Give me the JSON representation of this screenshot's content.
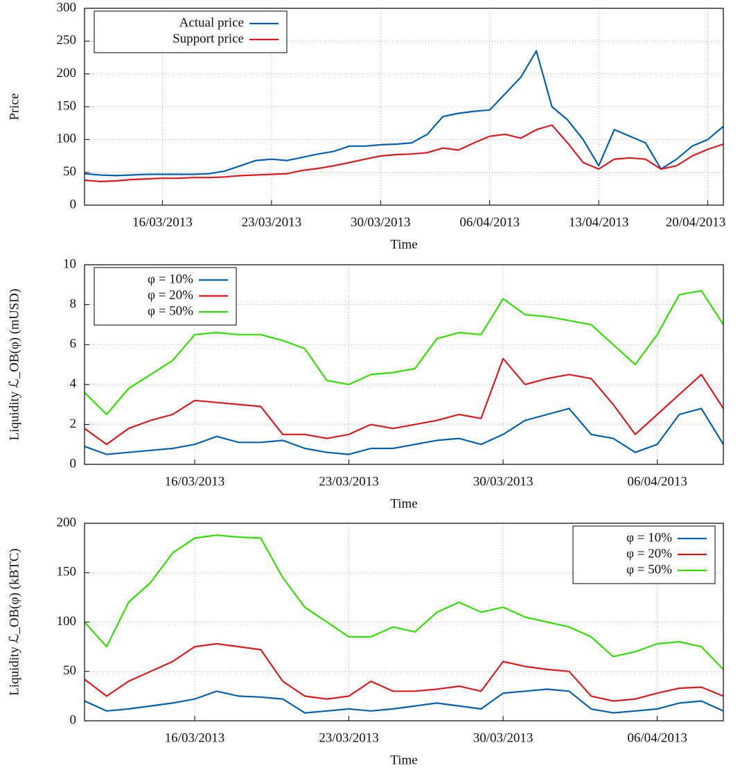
{
  "chart_data": [
    {
      "type": "line",
      "ylabel": "Price",
      "xlabel": "Time",
      "legend": "upper left",
      "grid": true,
      "x": [
        "2013-03-11",
        "2013-03-12",
        "2013-03-13",
        "2013-03-14",
        "2013-03-15",
        "2013-03-16",
        "2013-03-17",
        "2013-03-18",
        "2013-03-19",
        "2013-03-20",
        "2013-03-21",
        "2013-03-22",
        "2013-03-23",
        "2013-03-24",
        "2013-03-25",
        "2013-03-26",
        "2013-03-27",
        "2013-03-28",
        "2013-03-29",
        "2013-03-30",
        "2013-03-31",
        "2013-04-01",
        "2013-04-02",
        "2013-04-03",
        "2013-04-04",
        "2013-04-05",
        "2013-04-06",
        "2013-04-07",
        "2013-04-08",
        "2013-04-09",
        "2013-04-10",
        "2013-04-11",
        "2013-04-12",
        "2013-04-13",
        "2013-04-14",
        "2013-04-15",
        "2013-04-16",
        "2013-04-17",
        "2013-04-18",
        "2013-04-19",
        "2013-04-20",
        "2013-04-21"
      ],
      "xlim": [
        "2013-03-11",
        "2013-04-21"
      ],
      "xticks": [
        {
          "value": "2013-03-16",
          "label": "16/03/2013"
        },
        {
          "value": "2013-03-23",
          "label": "23/03/2013"
        },
        {
          "value": "2013-03-30",
          "label": "30/03/2013"
        },
        {
          "value": "2013-04-06",
          "label": "06/04/2013"
        },
        {
          "value": "2013-04-13",
          "label": "13/04/2013"
        },
        {
          "value": "2013-04-20",
          "label": "20/04/2013"
        }
      ],
      "ylim": [
        0,
        300
      ],
      "yticks": [
        0,
        50,
        100,
        150,
        200,
        250,
        300
      ],
      "series": [
        {
          "name": "Actual price",
          "color": "#0060ad",
          "values": [
            48,
            46,
            45,
            46,
            47,
            47,
            47,
            47,
            48,
            52,
            60,
            68,
            70,
            68,
            73,
            78,
            82,
            90,
            90,
            92,
            93,
            95,
            108,
            135,
            140,
            143,
            145,
            170,
            195,
            235,
            150,
            130,
            100,
            60,
            115,
            105,
            95,
            55,
            70,
            90,
            100,
            120
          ]
        },
        {
          "name": "Support price",
          "color": "#dd181f",
          "values": [
            38,
            36,
            37,
            39,
            40,
            41,
            41,
            42,
            42,
            43,
            45,
            46,
            47,
            48,
            53,
            56,
            60,
            65,
            70,
            75,
            77,
            78,
            80,
            87,
            84,
            95,
            105,
            108,
            102,
            115,
            122,
            95,
            65,
            55,
            70,
            72,
            70,
            55,
            60,
            75,
            85,
            93
          ]
        }
      ]
    },
    {
      "type": "line",
      "ylabel": "Liquidity ℒ_OB(φ) (mUSD)",
      "xlabel": "Time",
      "legend": "upper left",
      "grid": true,
      "x": [
        "2013-03-11",
        "2013-03-12",
        "2013-03-13",
        "2013-03-14",
        "2013-03-15",
        "2013-03-16",
        "2013-03-17",
        "2013-03-18",
        "2013-03-19",
        "2013-03-20",
        "2013-03-21",
        "2013-03-22",
        "2013-03-23",
        "2013-03-24",
        "2013-03-25",
        "2013-03-26",
        "2013-03-27",
        "2013-03-28",
        "2013-03-29",
        "2013-03-30",
        "2013-03-31",
        "2013-04-01",
        "2013-04-02",
        "2013-04-03",
        "2013-04-04",
        "2013-04-05",
        "2013-04-06",
        "2013-04-07",
        "2013-04-08",
        "2013-04-09"
      ],
      "xlim": [
        "2013-03-11",
        "2013-04-09"
      ],
      "xticks": [
        {
          "value": "2013-03-16",
          "label": "16/03/2013"
        },
        {
          "value": "2013-03-23",
          "label": "23/03/2013"
        },
        {
          "value": "2013-03-30",
          "label": "30/03/2013"
        },
        {
          "value": "2013-04-06",
          "label": "06/04/2013"
        }
      ],
      "ylim": [
        0,
        10
      ],
      "yticks": [
        0,
        2,
        4,
        6,
        8,
        10
      ],
      "series": [
        {
          "name": "φ = 10%",
          "color": "#0060ad",
          "values": [
            0.9,
            0.5,
            0.6,
            0.7,
            0.8,
            1.0,
            1.4,
            1.1,
            1.1,
            1.2,
            0.8,
            0.6,
            0.5,
            0.8,
            0.8,
            1.0,
            1.2,
            1.3,
            1.0,
            1.5,
            2.2,
            2.5,
            2.8,
            1.5,
            1.3,
            0.6,
            1.0,
            2.5,
            2.8,
            1.0
          ]
        },
        {
          "name": "φ = 20%",
          "color": "#dd181f",
          "values": [
            1.8,
            1.0,
            1.8,
            2.2,
            2.5,
            3.2,
            3.1,
            3.0,
            2.9,
            1.5,
            1.5,
            1.3,
            1.5,
            2.0,
            1.8,
            2.0,
            2.2,
            2.5,
            2.3,
            5.3,
            4.0,
            4.3,
            4.5,
            4.3,
            3.0,
            1.5,
            2.5,
            3.5,
            4.5,
            2.8
          ]
        },
        {
          "name": "φ = 50%",
          "color": "#33dd00",
          "values": [
            3.6,
            2.5,
            3.8,
            4.5,
            5.2,
            6.5,
            6.6,
            6.5,
            6.5,
            6.2,
            5.8,
            4.2,
            4.0,
            4.5,
            4.6,
            4.8,
            6.3,
            6.6,
            6.5,
            8.3,
            7.5,
            7.4,
            7.2,
            7.0,
            6.0,
            5.0,
            6.5,
            8.5,
            8.7,
            7.0
          ]
        }
      ]
    },
    {
      "type": "line",
      "ylabel": "Liquidity ℒ_OB(φ) (kBTC)",
      "xlabel": "Time",
      "legend": "upper right",
      "grid": true,
      "x": [
        "2013-03-11",
        "2013-03-12",
        "2013-03-13",
        "2013-03-14",
        "2013-03-15",
        "2013-03-16",
        "2013-03-17",
        "2013-03-18",
        "2013-03-19",
        "2013-03-20",
        "2013-03-21",
        "2013-03-22",
        "2013-03-23",
        "2013-03-24",
        "2013-03-25",
        "2013-03-26",
        "2013-03-27",
        "2013-03-28",
        "2013-03-29",
        "2013-03-30",
        "2013-03-31",
        "2013-04-01",
        "2013-04-02",
        "2013-04-03",
        "2013-04-04",
        "2013-04-05",
        "2013-04-06",
        "2013-04-07",
        "2013-04-08",
        "2013-04-09"
      ],
      "xlim": [
        "2013-03-11",
        "2013-04-09"
      ],
      "xticks": [
        {
          "value": "2013-03-16",
          "label": "16/03/2013"
        },
        {
          "value": "2013-03-23",
          "label": "23/03/2013"
        },
        {
          "value": "2013-03-30",
          "label": "30/03/2013"
        },
        {
          "value": "2013-04-06",
          "label": "06/04/2013"
        }
      ],
      "ylim": [
        0,
        200
      ],
      "yticks": [
        0,
        50,
        100,
        150,
        200
      ],
      "series": [
        {
          "name": "φ = 10%",
          "color": "#0060ad",
          "values": [
            20,
            10,
            12,
            15,
            18,
            22,
            30,
            25,
            24,
            22,
            8,
            10,
            12,
            10,
            12,
            15,
            18,
            15,
            12,
            28,
            30,
            32,
            30,
            12,
            8,
            10,
            12,
            18,
            20,
            10
          ]
        },
        {
          "name": "φ = 20%",
          "color": "#dd181f",
          "values": [
            42,
            25,
            40,
            50,
            60,
            75,
            78,
            75,
            72,
            40,
            25,
            22,
            25,
            40,
            30,
            30,
            32,
            35,
            30,
            60,
            55,
            52,
            50,
            25,
            20,
            22,
            28,
            33,
            34,
            25
          ]
        },
        {
          "name": "φ = 50%",
          "color": "#33dd00",
          "values": [
            100,
            75,
            120,
            140,
            170,
            185,
            188,
            186,
            185,
            145,
            115,
            100,
            85,
            85,
            95,
            90,
            110,
            120,
            110,
            115,
            105,
            100,
            95,
            85,
            65,
            70,
            78,
            80,
            75,
            52
          ]
        }
      ]
    }
  ]
}
